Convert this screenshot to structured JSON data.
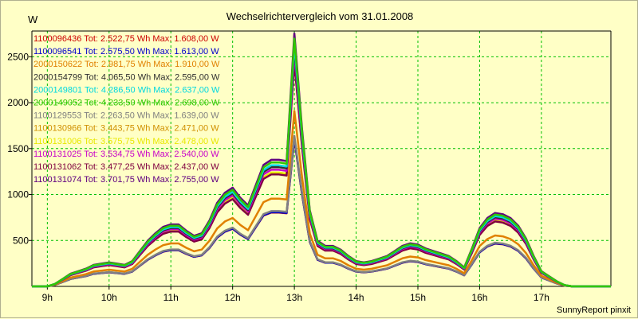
{
  "chart_data": {
    "type": "line",
    "title": "Wechselrichtervergleich vom 31.01.2008",
    "ylabel": "W",
    "xlabel": "",
    "credit": "SunnyReport pinxit",
    "xlim": [
      8.75,
      18.125
    ],
    "ylim": [
      0,
      2780
    ],
    "x_ticks": [
      9,
      10,
      11,
      12,
      13,
      14,
      15,
      16,
      17
    ],
    "x_tick_labels": [
      "9h",
      "10h",
      "11h",
      "12h",
      "13h",
      "14h",
      "15h",
      "16h",
      "17h"
    ],
    "y_ticks": [
      500,
      1000,
      1500,
      2000,
      2500
    ],
    "y_tick_labels": [
      "500",
      "1000",
      "1500",
      "2000",
      "2500"
    ],
    "grid": true,
    "legend_position": "top-left",
    "background": "#ffffc6",
    "x": [
      8.75,
      8.875,
      9.0,
      9.125,
      9.25,
      9.375,
      9.5,
      9.625,
      9.75,
      9.875,
      10.0,
      10.125,
      10.25,
      10.375,
      10.5,
      10.625,
      10.75,
      10.875,
      11.0,
      11.125,
      11.25,
      11.375,
      11.5,
      11.625,
      11.75,
      11.875,
      12.0,
      12.125,
      12.25,
      12.375,
      12.5,
      12.625,
      12.75,
      12.875,
      13.0,
      13.125,
      13.25,
      13.375,
      13.5,
      13.625,
      13.75,
      13.875,
      14.0,
      14.125,
      14.25,
      14.375,
      14.5,
      14.625,
      14.75,
      14.875,
      15.0,
      15.125,
      15.25,
      15.375,
      15.5,
      15.625,
      15.75,
      15.875,
      16.0,
      16.125,
      16.25,
      16.375,
      16.5,
      16.625,
      16.75,
      16.875,
      17.0,
      17.125,
      17.25,
      17.375,
      17.5,
      17.625,
      17.75,
      17.875,
      18.0,
      18.125
    ],
    "profile": [
      0,
      0,
      0,
      0.01,
      0.03,
      0.05,
      0.06,
      0.07,
      0.085,
      0.09,
      0.095,
      0.09,
      0.085,
      0.1,
      0.14,
      0.18,
      0.21,
      0.235,
      0.245,
      0.245,
      0.22,
      0.2,
      0.21,
      0.26,
      0.33,
      0.37,
      0.39,
      0.35,
      0.32,
      0.4,
      0.48,
      0.5,
      0.5,
      0.495,
      1.0,
      0.62,
      0.3,
      0.18,
      0.16,
      0.16,
      0.145,
      0.12,
      0.1,
      0.095,
      0.1,
      0.11,
      0.12,
      0.14,
      0.16,
      0.17,
      0.165,
      0.15,
      0.14,
      0.13,
      0.12,
      0.1,
      0.075,
      0.15,
      0.23,
      0.27,
      0.29,
      0.285,
      0.27,
      0.24,
      0.19,
      0.12,
      0.06,
      0.04,
      0.02,
      0.005,
      0,
      0,
      0,
      0,
      0,
      0
    ],
    "series": [
      {
        "id": "1100096436",
        "legend": "1100096436 Tot: 2.522,75 Wh Max: 1.608,00 W",
        "color": "#cc0000",
        "max": 1608
      },
      {
        "id": "1100096541",
        "legend": "1100096541 Tot: 2.575,50 Wh Max: 1.613,00 W",
        "color": "#0000cc",
        "max": 1613
      },
      {
        "id": "2000150622",
        "legend": "2000150622 Tot: 2.981,75 Wh Max: 1.910,00 W",
        "color": "#e08000",
        "max": 1910
      },
      {
        "id": "2000154799",
        "legend": "2000154799 Tot: 4.065,50 Wh Max: 2.595,00 W",
        "color": "#303030",
        "max": 2595
      },
      {
        "id": "2000149801",
        "legend": "2000149801 Tot: 4.286,50 Wh Max: 2.637,00 W",
        "color": "#00d8e0",
        "max": 2637
      },
      {
        "id": "2000149052",
        "legend": "2000149052 Tot: 4.233,50 Wh Max: 2.698,00 W",
        "color": "#30c800",
        "max": 2698
      },
      {
        "id": "1100129553",
        "legend": "1100129553 Tot: 2.263,50 Wh Max: 1.639,00 W",
        "color": "#808080",
        "max": 1639
      },
      {
        "id": "1100130966",
        "legend": "1100130966 Tot: 3.443,75 Wh Max: 2.471,00 W",
        "color": "#d09000",
        "max": 2471
      },
      {
        "id": "1100131006",
        "legend": "1100131006 Tot: 3.575,75 Wh Max: 2.478,00 W",
        "color": "#e8e800",
        "max": 2478
      },
      {
        "id": "1100131025",
        "legend": "1100131025 Tot: 3.534,75 Wh Max: 2.540,00 W",
        "color": "#c800c8",
        "max": 2540
      },
      {
        "id": "1100131062",
        "legend": "1100131062 Tot: 3.477,25 Wh Max: 2.437,00 W",
        "color": "#800040",
        "max": 2437
      },
      {
        "id": "1100131074",
        "legend": "1100131074 Tot: 3.701,75 Wh Max: 2.755,00 W",
        "color": "#600080",
        "max": 2755
      }
    ]
  }
}
